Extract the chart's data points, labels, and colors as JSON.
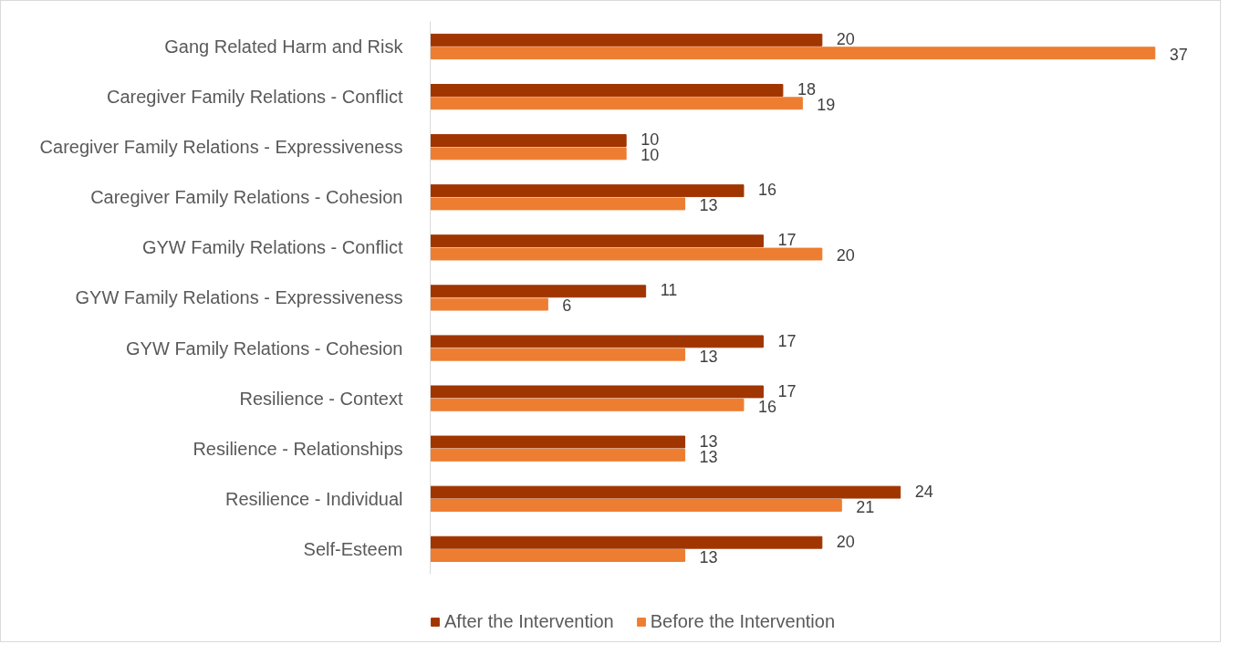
{
  "chart_data": {
    "type": "bar",
    "orientation": "horizontal",
    "categories": [
      "Gang Related Harm and Risk",
      "Caregiver Family Relations - Conflict",
      "Caregiver Family Relations - Expressiveness",
      "Caregiver Family Relations - Cohesion",
      "GYW Family Relations - Conflict",
      "GYW Family Relations - Expressiveness",
      "GYW Family Relations - Cohesion",
      "Resilience - Context",
      "Resilience - Relationships",
      "Resilience - Individual",
      "Self-Esteem"
    ],
    "series": [
      {
        "name": "After the Intervention",
        "color": "#a03500",
        "values": [
          20,
          18,
          10,
          16,
          17,
          11,
          17,
          17,
          13,
          24,
          20
        ]
      },
      {
        "name": "Before the Intervention",
        "color": "#ed7d31",
        "values": [
          37,
          19,
          10,
          13,
          20,
          6,
          13,
          16,
          13,
          21,
          13
        ]
      }
    ],
    "tick_labels": "y",
    "data_labels": true,
    "legend": "bottom"
  }
}
